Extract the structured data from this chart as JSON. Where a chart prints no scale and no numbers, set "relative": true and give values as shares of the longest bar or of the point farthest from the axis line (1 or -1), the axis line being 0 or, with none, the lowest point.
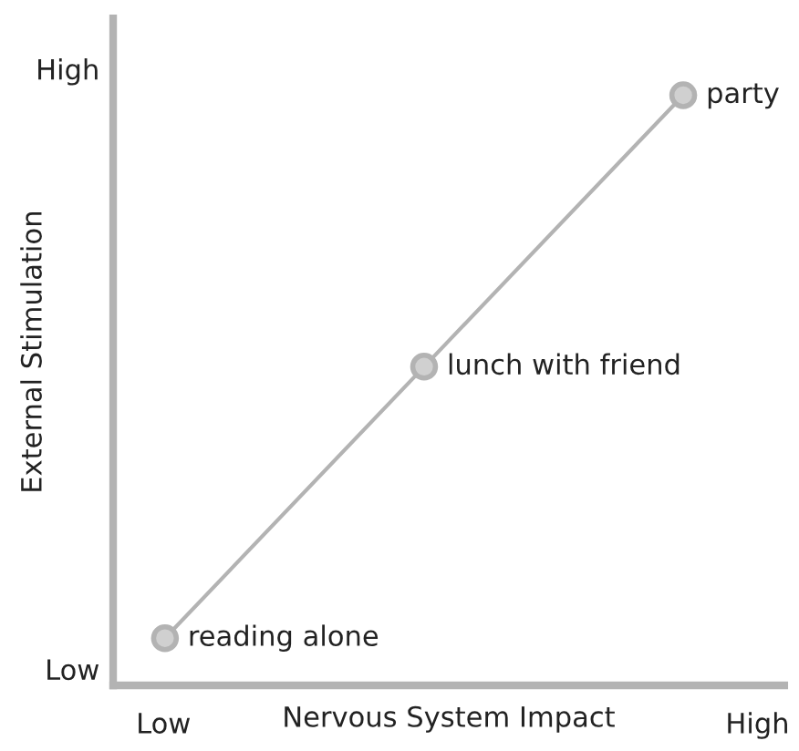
{
  "chart_data": {
    "type": "line",
    "xlabel": "Nervous System Impact",
    "ylabel": "External Stimulation",
    "categories": [
      null,
      null,
      null
    ],
    "relative": true,
    "series": [
      {
        "color": "#b3b3b3",
        "values": [
          0.08,
          0.54,
          1
        ]
      }
    ],
    "marker": "circle",
    "line_style": "solid",
    "legend": false,
    "annotations": [
      "High",
      "Low",
      "Low",
      "High",
      "reading alone",
      "lunch with friend",
      "party"
    ]
  }
}
